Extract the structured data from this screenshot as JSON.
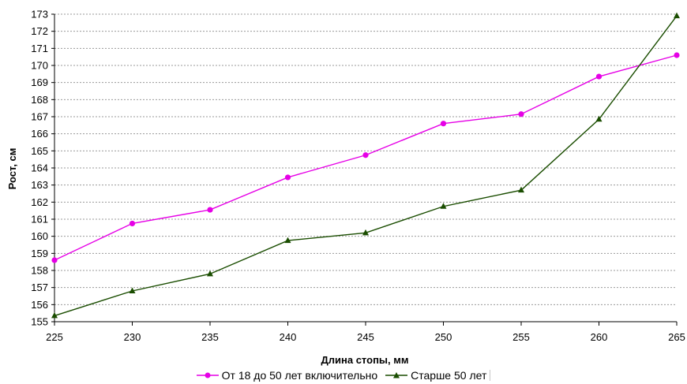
{
  "chart_data": {
    "type": "line",
    "title": "",
    "xlabel": "Длина стопы, мм",
    "ylabel": "Рост, см",
    "x": [
      225,
      230,
      235,
      240,
      245,
      250,
      255,
      260,
      265
    ],
    "xlim": [
      225,
      265
    ],
    "ylim": [
      155,
      173
    ],
    "yticks": [
      155,
      156,
      157,
      158,
      159,
      160,
      161,
      162,
      163,
      164,
      165,
      166,
      167,
      168,
      169,
      170,
      171,
      172,
      173
    ],
    "grid": "horizontal dashed",
    "legend_position": "bottom",
    "series": [
      {
        "name": "От 18 до 50 лет включительно",
        "color": "#e600e6",
        "marker": "circle",
        "values": [
          158.6,
          160.75,
          161.55,
          163.45,
          164.75,
          166.6,
          167.15,
          169.35,
          170.6
        ]
      },
      {
        "name": "Старше 50 лет",
        "color": "#1a4d00",
        "marker": "triangle",
        "values": [
          155.35,
          156.8,
          157.8,
          159.75,
          160.2,
          161.75,
          162.7,
          166.85,
          172.9
        ]
      }
    ]
  }
}
